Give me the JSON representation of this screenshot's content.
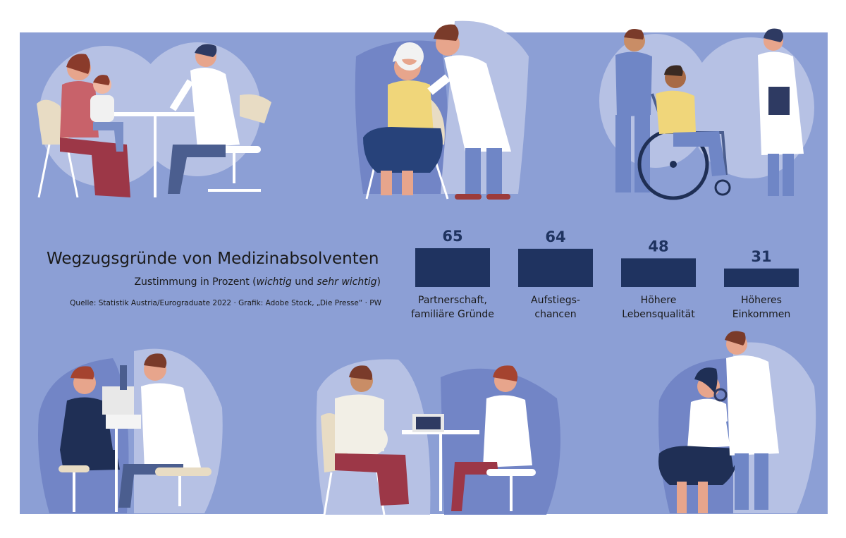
{
  "title": "Wegzugsgründe von Medizinabsolventen",
  "subtitle": {
    "prefix": "Zustimmung in Prozent (",
    "em1": "wichtig",
    "middle": " und ",
    "em2": "sehr wichtig",
    "suffix": ")"
  },
  "source": "Quelle: Statistik Austria/Eurograduate 2022 · Grafik: Adobe Stock, „Die Presse“ · PW",
  "colors": {
    "bar": "#1f3360",
    "background": "#8c9fd5",
    "blob_light": "#b6c1e4",
    "blob_dark": "#7285c6",
    "coat": "#ffffff",
    "scrubs": "#6f86c6"
  },
  "chart_data": {
    "type": "bar",
    "categories": [
      [
        "Partnerschaft,",
        "familiäre Gründe"
      ],
      [
        "Aufstiegs-",
        "chancen"
      ],
      [
        "Höhere",
        "Lebensqualität"
      ],
      [
        "Höheres",
        "Einkommen"
      ]
    ],
    "values": [
      65,
      64,
      48,
      31
    ],
    "value_labels": [
      "65",
      "64",
      "48",
      "31"
    ],
    "ylim": [
      0,
      65
    ]
  }
}
